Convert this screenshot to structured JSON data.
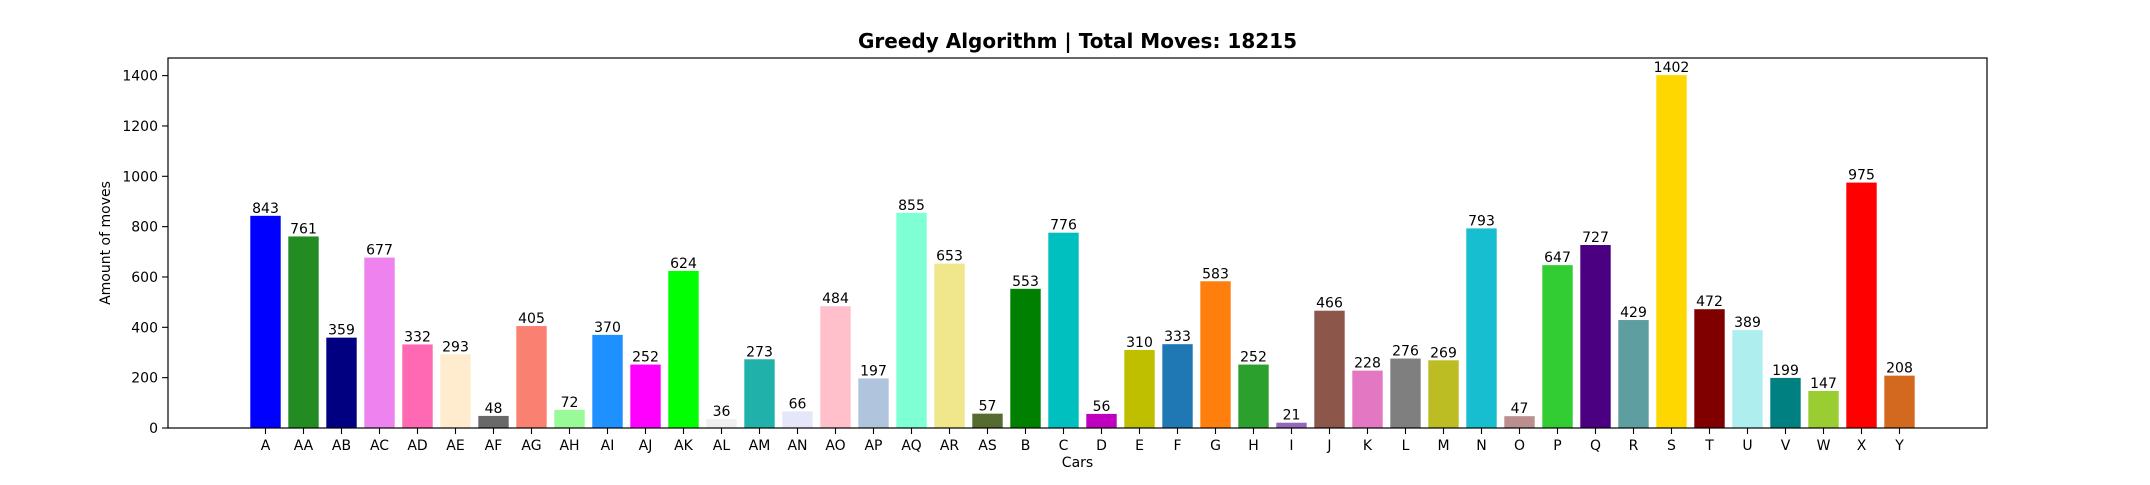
{
  "chart_data": {
    "type": "bar",
    "title": "Greedy Algorithm | Total Moves: 18215",
    "xlabel": "Cars",
    "ylabel": "Amount of moves",
    "ylim": [
      0,
      1470
    ],
    "yticks": [
      0,
      200,
      400,
      600,
      800,
      1000,
      1200,
      1400
    ],
    "grid": false,
    "categories": [
      "A",
      "AA",
      "AB",
      "AC",
      "AD",
      "AE",
      "AF",
      "AG",
      "AH",
      "AI",
      "AJ",
      "AK",
      "AL",
      "AM",
      "AN",
      "AO",
      "AP",
      "AQ",
      "AR",
      "AS",
      "B",
      "C",
      "D",
      "E",
      "F",
      "G",
      "H",
      "I",
      "J",
      "K",
      "L",
      "M",
      "N",
      "O",
      "P",
      "Q",
      "R",
      "S",
      "T",
      "U",
      "V",
      "W",
      "X",
      "Y"
    ],
    "values": [
      843,
      761,
      359,
      677,
      332,
      293,
      48,
      405,
      72,
      370,
      252,
      624,
      36,
      273,
      66,
      484,
      197,
      855,
      653,
      57,
      553,
      776,
      56,
      310,
      333,
      583,
      252,
      21,
      466,
      228,
      276,
      269,
      793,
      47,
      647,
      727,
      429,
      1402,
      472,
      389,
      199,
      147,
      975,
      208
    ],
    "colors": [
      "#0000ff",
      "#228b22",
      "#000080",
      "#ee82ee",
      "#ff69b4",
      "#ffebcd",
      "#696969",
      "#fa8072",
      "#98fb98",
      "#1e90ff",
      "#ff00ff",
      "#00ff00",
      "#f0f0f0",
      "#20b2aa",
      "#e6e6fa",
      "#ffc0cb",
      "#b0c4de",
      "#7fffd4",
      "#f0e68c",
      "#556b2f",
      "#008000",
      "#00bfbf",
      "#bf00bf",
      "#bfbf00",
      "#1f77b4",
      "#ff7f0e",
      "#2ca02c",
      "#9467bd",
      "#8c564b",
      "#e377c2",
      "#7f7f7f",
      "#bcbd22",
      "#17becf",
      "#bc8f8f",
      "#32cd32",
      "#4b0082",
      "#5f9ea0",
      "#ffd700",
      "#800000",
      "#afeeee",
      "#008080",
      "#9acd32",
      "#ff0000",
      "#d2691e"
    ]
  }
}
